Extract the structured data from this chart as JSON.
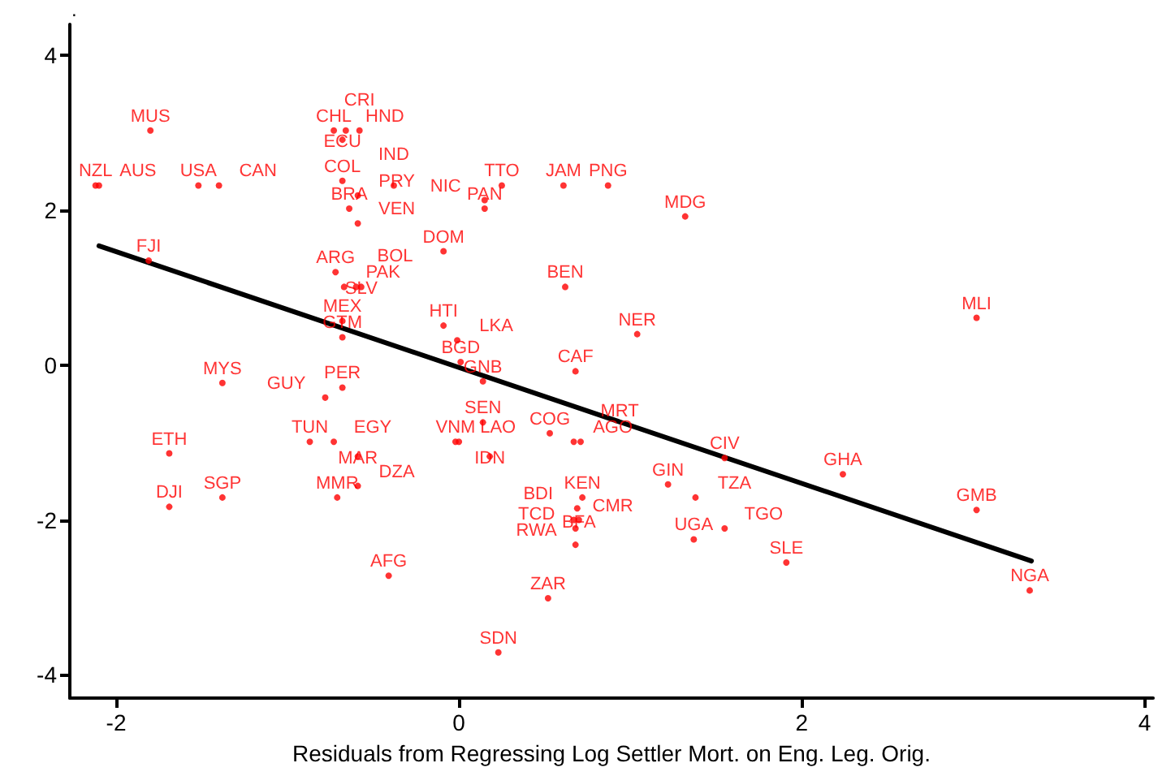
{
  "chart_data": {
    "type": "scatter",
    "xlabel": "Residuals from Regressing Log Settler Mort. on Eng. Leg. Orig.",
    "ylabel": ".",
    "xlim": [
      -2.27,
      4.05
    ],
    "ylim": [
      -4.3,
      4.4
    ],
    "xticks": [
      -2,
      0,
      2,
      4
    ],
    "yticks": [
      -4,
      -2,
      0,
      2,
      4
    ],
    "grid": false,
    "series": [
      {
        "color": "#ff0000",
        "marker": "circle",
        "x": [
          -1.8,
          -0.73,
          -0.66,
          -0.58,
          -0.68,
          -2.12,
          -2.1,
          -1.52,
          -1.4,
          -0.68,
          -0.59,
          -0.64,
          -0.59,
          -0.38,
          0.25,
          0.15,
          0.15,
          0.61,
          0.87,
          1.32,
          -0.09,
          0.62,
          -1.81,
          -0.72,
          -0.67,
          -0.6,
          -0.57,
          -0.68,
          -0.68,
          -0.09,
          -0.01,
          0.01,
          0.14,
          1.04,
          0.68,
          3.02,
          -1.38,
          -0.68,
          -0.78,
          0.14,
          0.53,
          0.67,
          0.71,
          -0.02,
          0.0,
          0.18,
          -0.87,
          -0.73,
          -0.59,
          -1.69,
          -1.69,
          -1.38,
          -0.71,
          -0.59,
          -0.41,
          1.55,
          2.24,
          1.22,
          1.38,
          0.72,
          0.69,
          0.67,
          0.7,
          0.68,
          0.68,
          1.37,
          1.55,
          1.91,
          3.02,
          3.33,
          0.52,
          0.23
        ],
        "values": [
          3.03,
          3.03,
          3.03,
          3.03,
          2.91,
          2.32,
          2.32,
          2.32,
          2.32,
          2.38,
          2.19,
          2.02,
          1.83,
          2.32,
          2.32,
          2.13,
          2.02,
          2.32,
          2.32,
          1.92,
          1.47,
          1.01,
          1.35,
          1.2,
          1.01,
          1.01,
          1.01,
          0.57,
          0.36,
          0.51,
          0.32,
          0.04,
          -0.21,
          0.4,
          -0.08,
          0.61,
          -0.23,
          -0.29,
          -0.42,
          -0.74,
          -0.88,
          -0.99,
          -0.99,
          -0.99,
          -0.99,
          -1.18,
          -0.99,
          -0.99,
          -1.18,
          -1.14,
          -1.83,
          -1.71,
          -1.71,
          -1.56,
          -2.72,
          -1.2,
          -1.41,
          -1.54,
          -1.71,
          -1.71,
          -1.85,
          -2.0,
          -2.0,
          -2.11,
          -2.32,
          -2.25,
          -2.11,
          -2.55,
          -1.87,
          -2.91,
          -3.01,
          -3.71
        ],
        "value_labels": [
          "MUS",
          "CHL",
          "HND",
          "CRI",
          "ECU",
          "NZL",
          "AUS",
          "USA",
          "CAN",
          "COL",
          "PRY",
          "BRA",
          "VEN",
          "IND",
          "TTO",
          "NIC",
          "PAN",
          "JAM",
          "PNG",
          "MDG",
          "DOM",
          "BEN",
          "FJI",
          "ARG",
          "PAK",
          "BOL",
          "SLV",
          "MEX",
          "GTM",
          "HTI",
          "LKA",
          "BGD",
          "GNB",
          "NER",
          "CAF",
          "MLI",
          "MYS",
          "PER",
          "GUY",
          "SEN",
          "COG",
          "AGO",
          "MRT",
          "VNM",
          "LAO",
          "IDN",
          "TUN",
          "EGY",
          "MAR",
          "ETH",
          "DJI",
          "SGP",
          "MMR",
          "DZA",
          "AFG",
          "CIV",
          "GHA",
          "GIN",
          "TZA",
          "KEN",
          "BDI",
          "CMR",
          "BFA",
          "TCD",
          "RWA",
          "UGA",
          "TGO",
          "SLE",
          "GMB",
          "NGA",
          "ZAR",
          "SDN"
        ]
      },
      {
        "type": "line",
        "color": "#000000",
        "marker": "none",
        "line_style": "solid",
        "x": [
          -2.1,
          3.34
        ],
        "values": [
          1.54,
          -2.53
        ]
      }
    ]
  }
}
